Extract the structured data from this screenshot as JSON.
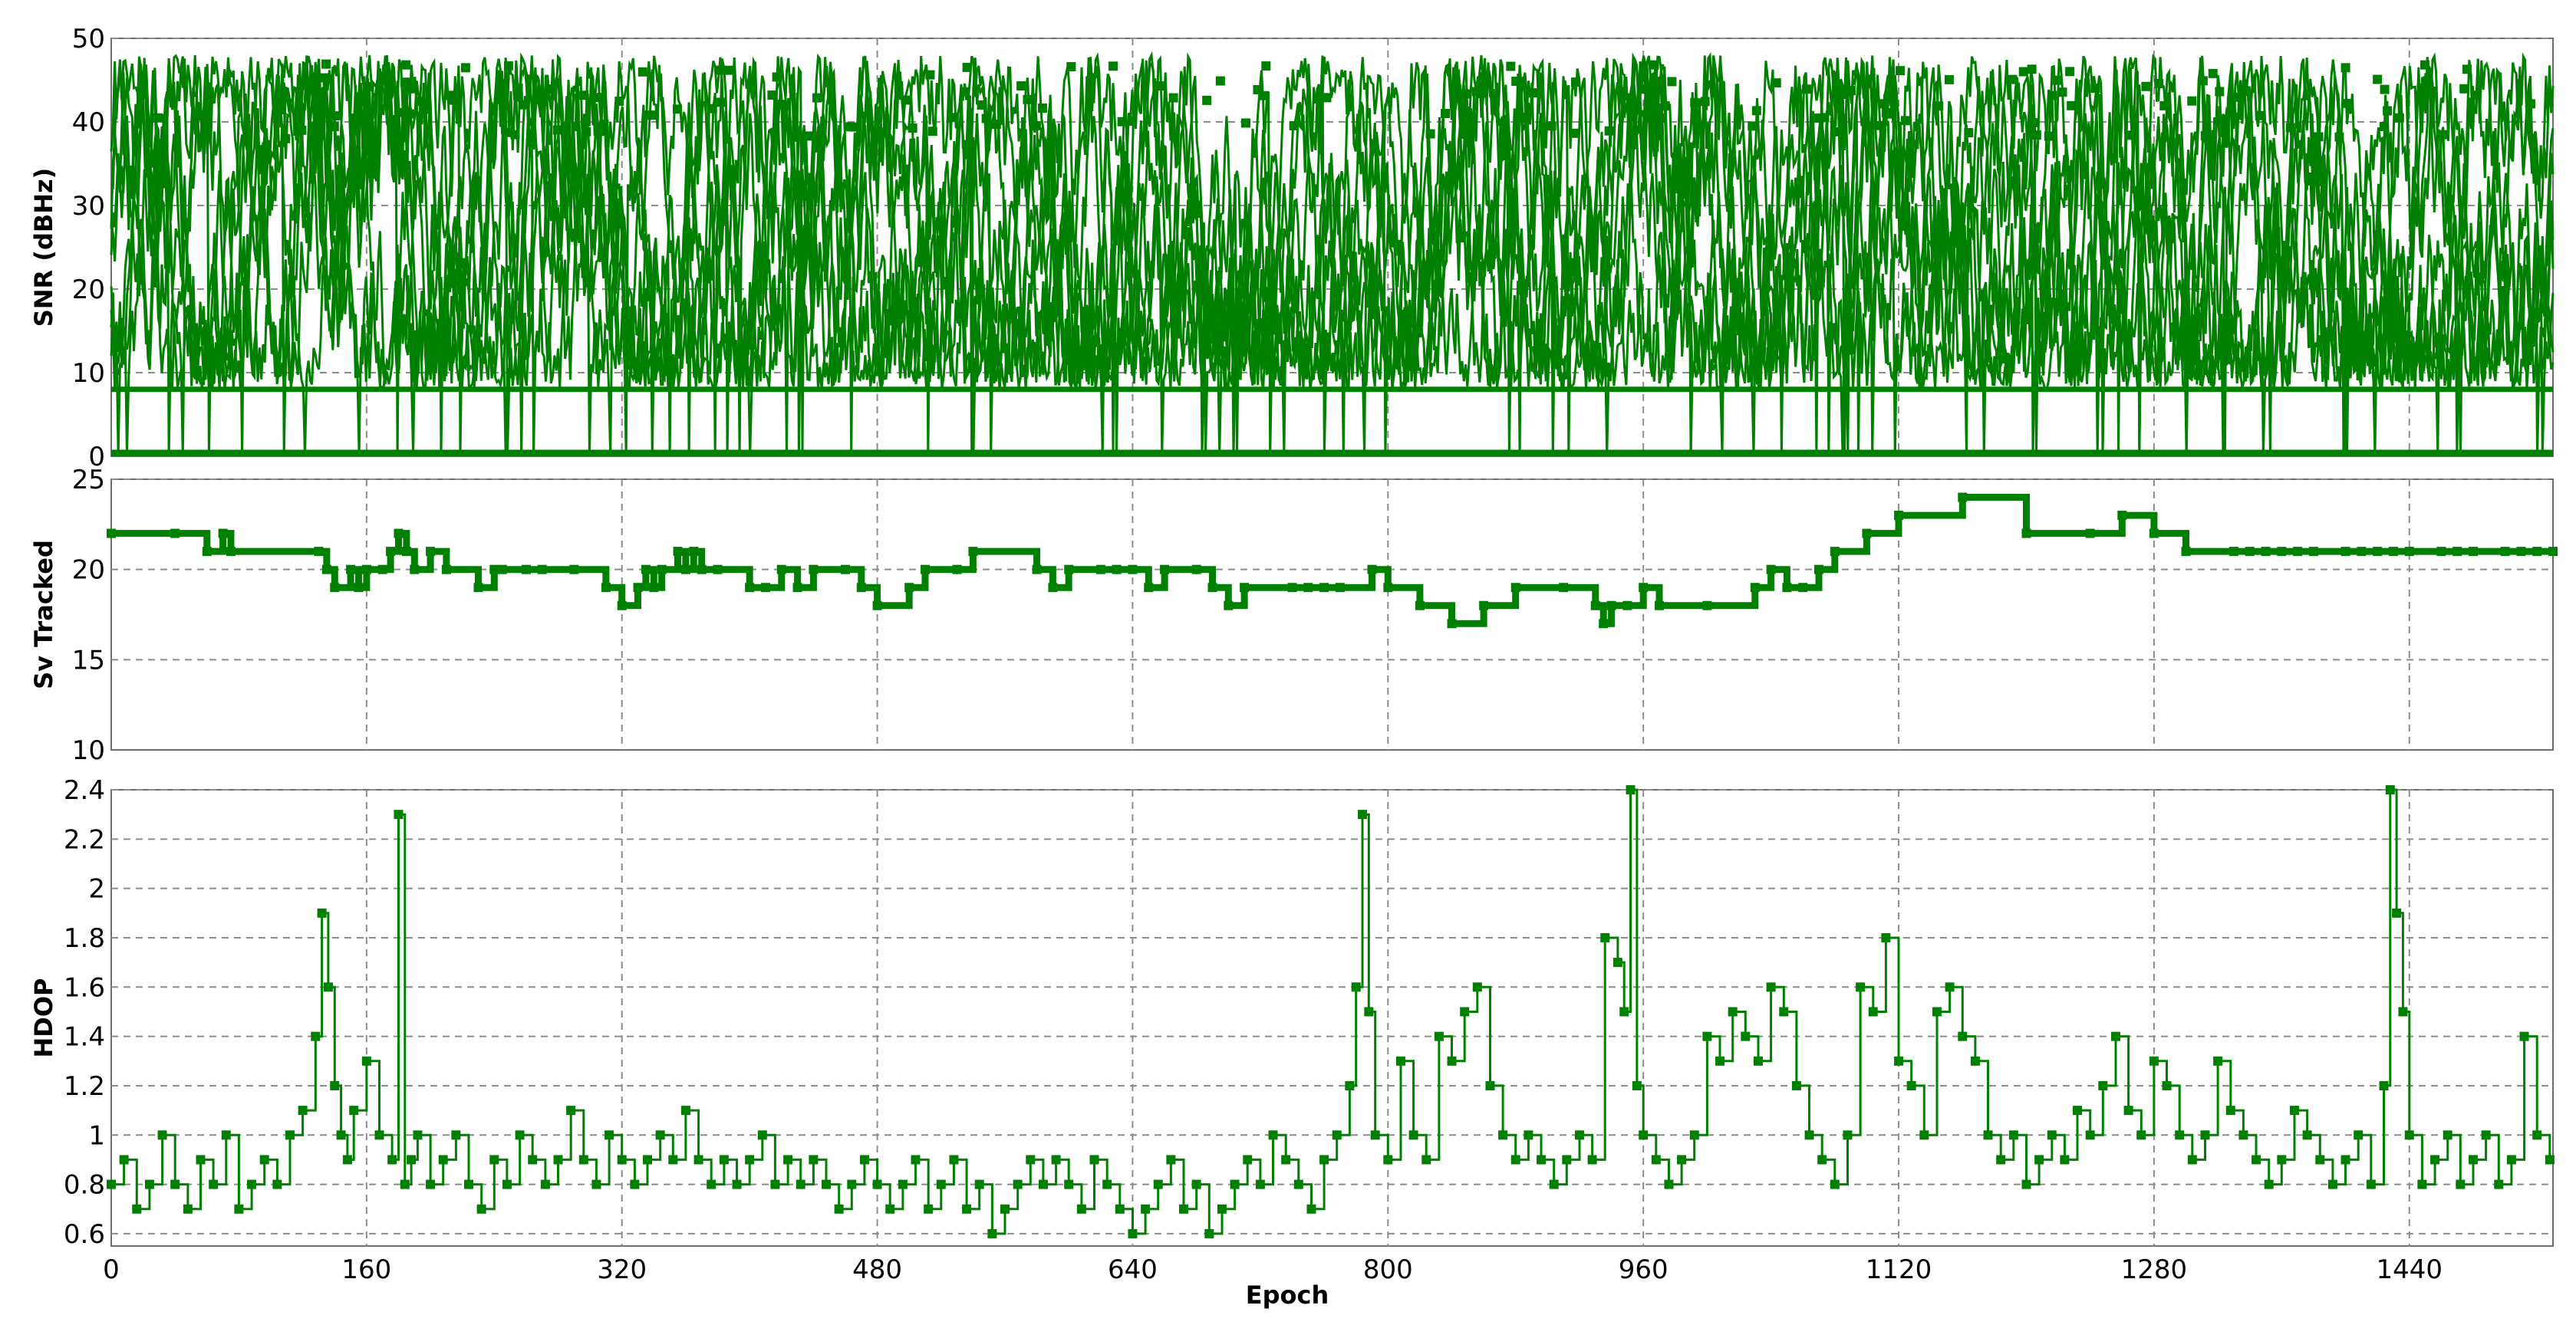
{
  "colors": {
    "series": "#008000",
    "grid": "#8c8c8c",
    "background": "#ffffff"
  },
  "shared_x": {
    "label": "Epoch",
    "range": [
      0,
      1530
    ],
    "ticks": [
      "0",
      "160",
      "320",
      "480",
      "640",
      "800",
      "960",
      "1120",
      "1280",
      "1440"
    ]
  },
  "chart_data": [
    {
      "type": "line",
      "markers": "square",
      "ylabel": "SNR (dBHz)",
      "xlim": [
        0,
        1530
      ],
      "ylim": [
        0,
        50
      ],
      "yticks": [
        "0",
        "10",
        "20",
        "30",
        "40",
        "50"
      ],
      "grid": true,
      "description": "Dense multi-satellite SNR traces; values jump between ~8 and ~45 dBHz with drop-outs to 0",
      "series": [
        {
          "values_summary": {
            "baseline": 0,
            "floor": 8,
            "typical_min": 12,
            "typical_max": 40,
            "peak": 48
          }
        }
      ]
    },
    {
      "type": "line",
      "markers": "square",
      "ylabel": "Sv Tracked",
      "xlim": [
        0,
        1530
      ],
      "ylim": [
        10,
        25
      ],
      "yticks": [
        "10",
        "15",
        "20",
        "25"
      ],
      "grid": true,
      "series": [
        {
          "x": [
            0,
            40,
            60,
            70,
            75,
            130,
            135,
            140,
            150,
            155,
            160,
            170,
            175,
            180,
            185,
            190,
            200,
            210,
            230,
            240,
            245,
            260,
            270,
            290,
            310,
            320,
            330,
            335,
            340,
            345,
            355,
            360,
            365,
            370,
            380,
            400,
            410,
            420,
            430,
            440,
            460,
            470,
            480,
            500,
            510,
            530,
            540,
            580,
            590,
            600,
            620,
            630,
            640,
            650,
            660,
            680,
            690,
            700,
            710,
            740,
            750,
            760,
            770,
            790,
            800,
            820,
            840,
            860,
            880,
            910,
            930,
            935,
            940,
            950,
            960,
            970,
            1000,
            1030,
            1040,
            1050,
            1060,
            1070,
            1080,
            1100,
            1120,
            1160,
            1200,
            1240,
            1260,
            1280,
            1300,
            1330,
            1340,
            1350,
            1360,
            1370,
            1380,
            1400,
            1410,
            1420,
            1430,
            1440,
            1460,
            1470,
            1480,
            1500,
            1510,
            1520,
            1530
          ],
          "y": [
            22,
            22,
            21,
            22,
            21,
            21,
            20,
            19,
            20,
            19,
            20,
            20,
            21,
            22,
            21,
            20,
            21,
            20,
            19,
            20,
            20,
            20,
            20,
            20,
            19,
            18,
            19,
            20,
            19,
            20,
            21,
            20,
            21,
            20,
            20,
            19,
            19,
            20,
            19,
            20,
            20,
            19,
            18,
            19,
            20,
            20,
            21,
            20,
            19,
            20,
            20,
            20,
            20,
            19,
            20,
            20,
            19,
            18,
            19,
            19,
            19,
            19,
            19,
            20,
            19,
            18,
            17,
            18,
            19,
            19,
            18,
            17,
            18,
            18,
            19,
            18,
            18,
            19,
            20,
            19,
            19,
            20,
            21,
            22,
            23,
            24,
            22,
            22,
            23,
            22,
            21,
            21,
            21,
            21,
            21,
            21,
            21,
            21,
            21,
            21,
            21,
            21,
            21,
            21,
            21,
            21,
            21,
            21,
            21
          ]
        }
      ]
    },
    {
      "type": "line",
      "markers": "square",
      "ylabel": "HDOP",
      "xlabel": "Epoch",
      "xlim": [
        0,
        1530
      ],
      "ylim": [
        0.55,
        2.4
      ],
      "yticks": [
        "0.6",
        "0.8",
        "1",
        "1.2",
        "1.4",
        "1.6",
        "1.8",
        "2",
        "2.2",
        "2.4"
      ],
      "grid": true,
      "series": [
        {
          "x": [
            0,
            8,
            16,
            24,
            32,
            40,
            48,
            56,
            64,
            72,
            80,
            88,
            96,
            104,
            112,
            120,
            128,
            132,
            136,
            140,
            144,
            148,
            152,
            160,
            168,
            176,
            180,
            184,
            188,
            192,
            200,
            208,
            216,
            224,
            232,
            240,
            248,
            256,
            264,
            272,
            280,
            288,
            296,
            304,
            312,
            320,
            328,
            336,
            344,
            352,
            360,
            368,
            376,
            384,
            392,
            400,
            408,
            416,
            424,
            432,
            440,
            448,
            456,
            464,
            472,
            480,
            488,
            496,
            504,
            512,
            520,
            528,
            536,
            544,
            552,
            560,
            568,
            576,
            584,
            592,
            600,
            608,
            616,
            624,
            632,
            640,
            648,
            656,
            664,
            672,
            680,
            688,
            696,
            704,
            712,
            720,
            728,
            736,
            744,
            752,
            760,
            768,
            776,
            780,
            784,
            788,
            792,
            800,
            808,
            816,
            824,
            832,
            840,
            848,
            856,
            864,
            872,
            880,
            888,
            896,
            904,
            912,
            920,
            928,
            936,
            944,
            948,
            952,
            956,
            960,
            968,
            976,
            984,
            992,
            1000,
            1008,
            1016,
            1024,
            1032,
            1040,
            1048,
            1056,
            1064,
            1072,
            1080,
            1088,
            1096,
            1104,
            1112,
            1120,
            1128,
            1136,
            1144,
            1152,
            1160,
            1168,
            1176,
            1184,
            1192,
            1200,
            1208,
            1216,
            1224,
            1232,
            1240,
            1248,
            1256,
            1264,
            1272,
            1280,
            1288,
            1296,
            1304,
            1312,
            1320,
            1328,
            1336,
            1344,
            1352,
            1360,
            1368,
            1376,
            1384,
            1392,
            1400,
            1408,
            1416,
            1424,
            1428,
            1432,
            1436,
            1440,
            1448,
            1456,
            1464,
            1472,
            1480,
            1488,
            1496,
            1504,
            1512,
            1520,
            1528
          ],
          "y": [
            0.8,
            0.9,
            0.7,
            0.8,
            1.0,
            0.8,
            0.7,
            0.9,
            0.8,
            1.0,
            0.7,
            0.8,
            0.9,
            0.8,
            1.0,
            1.1,
            1.4,
            1.9,
            1.6,
            1.2,
            1.0,
            0.9,
            1.1,
            1.3,
            1.0,
            0.9,
            2.3,
            0.8,
            0.9,
            1.0,
            0.8,
            0.9,
            1.0,
            0.8,
            0.7,
            0.9,
            0.8,
            1.0,
            0.9,
            0.8,
            0.9,
            1.1,
            0.9,
            0.8,
            1.0,
            0.9,
            0.8,
            0.9,
            1.0,
            0.9,
            1.1,
            0.9,
            0.8,
            0.9,
            0.8,
            0.9,
            1.0,
            0.8,
            0.9,
            0.8,
            0.9,
            0.8,
            0.7,
            0.8,
            0.9,
            0.8,
            0.7,
            0.8,
            0.9,
            0.7,
            0.8,
            0.9,
            0.7,
            0.8,
            0.6,
            0.7,
            0.8,
            0.9,
            0.8,
            0.9,
            0.8,
            0.7,
            0.9,
            0.8,
            0.7,
            0.6,
            0.7,
            0.8,
            0.9,
            0.7,
            0.8,
            0.6,
            0.7,
            0.8,
            0.9,
            0.8,
            1.0,
            0.9,
            0.8,
            0.7,
            0.9,
            1.0,
            1.2,
            1.6,
            2.3,
            1.5,
            1.0,
            0.9,
            1.3,
            1.0,
            0.9,
            1.4,
            1.3,
            1.5,
            1.6,
            1.2,
            1.0,
            0.9,
            1.0,
            0.9,
            0.8,
            0.9,
            1.0,
            0.9,
            1.8,
            1.7,
            1.5,
            2.4,
            1.2,
            1.0,
            0.9,
            0.8,
            0.9,
            1.0,
            1.4,
            1.3,
            1.5,
            1.4,
            1.3,
            1.6,
            1.5,
            1.2,
            1.0,
            0.9,
            0.8,
            1.0,
            1.6,
            1.5,
            1.8,
            1.3,
            1.2,
            1.0,
            1.5,
            1.6,
            1.4,
            1.3,
            1.0,
            0.9,
            1.0,
            0.8,
            0.9,
            1.0,
            0.9,
            1.1,
            1.0,
            1.2,
            1.4,
            1.1,
            1.0,
            1.3,
            1.2,
            1.0,
            0.9,
            1.0,
            1.3,
            1.1,
            1.0,
            0.9,
            0.8,
            0.9,
            1.1,
            1.0,
            0.9,
            0.8,
            0.9,
            1.0,
            0.8,
            1.2,
            2.4,
            1.9,
            1.5,
            1.0,
            0.8,
            0.9,
            1.0,
            0.8,
            0.9,
            1.0,
            0.8,
            0.9,
            1.4,
            1.0,
            0.9
          ]
        }
      ]
    }
  ]
}
